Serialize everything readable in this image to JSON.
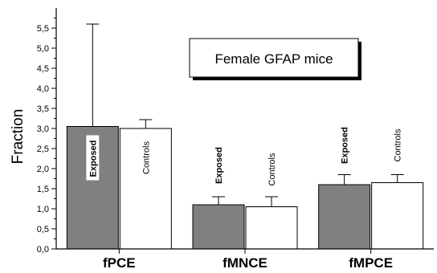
{
  "chart_data": {
    "type": "bar",
    "title": "Female GFAP mice",
    "ylabel": "Fraction",
    "xlabel": "",
    "ylim": [
      0,
      6.0
    ],
    "y_ticks": [
      0.0,
      0.5,
      1.0,
      1.5,
      2.0,
      2.5,
      3.0,
      3.5,
      4.0,
      4.5,
      5.0,
      5.5
    ],
    "y_tick_labels": [
      "0,0",
      "0,5",
      "1,0",
      "1,5",
      "2,0",
      "2,5",
      "3,0",
      "3,5",
      "4,0",
      "4,5",
      "5,0",
      "5,5"
    ],
    "categories": [
      "fPCE",
      "fMNCE",
      "fMPCE"
    ],
    "series": [
      {
        "name": "Exposed",
        "color": "#808080",
        "values": [
          3.05,
          1.1,
          1.6
        ],
        "error_upper": [
          5.6,
          1.3,
          1.85
        ]
      },
      {
        "name": "Controls",
        "color": "#ffffff",
        "values": [
          3.0,
          1.05,
          1.65
        ],
        "error_upper": [
          3.22,
          1.3,
          1.85
        ]
      }
    ],
    "grid": false,
    "legend": "none"
  }
}
